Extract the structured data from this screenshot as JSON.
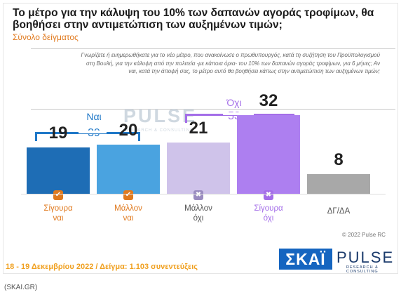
{
  "header": {
    "title": "Το μέτρο για την κάλυψη του 10% των δαπανών αγοράς τροφίμων, θα βοηθήσει στην αντιμετώπιση των αυξημένων τιμών;",
    "subtitle": "Σύνολο δείγματος"
  },
  "question": "Γνωρίζετε ή ενημερωθήκατε για το νέο μέτρο, που ανακοίνωσε ο πρωθυπουργός, κατά τη συζήτηση του Προϋπολογισμού στη Βουλή, για την κάλυψη από την πολιτεία -με κάποια όρια- του 10% των δαπανών αγοράς τροφίμων, για 6 μήνες; Αν ναι, κατά την άποψή σας, το μέτρο αυτό θα βοηθήσει κάπως στην αντιμετώπιση των αυξημένων τιμών;",
  "watermark": {
    "text": "PULSE",
    "sub": "RESEARCH & CONSULTING"
  },
  "groups": [
    {
      "label": "Ναι",
      "value": "39",
      "color": "#1f78c8"
    },
    {
      "label": "Όχι",
      "value": "53",
      "color": "#a46ee8"
    }
  ],
  "chart_data": {
    "type": "bar",
    "categories": [
      "Σίγουρα ναι",
      "Μάλλον ναι",
      "Μάλλον όχι",
      "Σίγουρα όχι",
      "ΔΓ/ΔΑ"
    ],
    "values": [
      19,
      20,
      21,
      32,
      8
    ],
    "colors": [
      "#1e6db5",
      "#4aa3e0",
      "#cfc3ea",
      "#ad7ff0",
      "#a8a8a8"
    ],
    "label_colors": [
      "#e07a1f",
      "#e07a1f",
      "#555555",
      "#a46ee8",
      "#555555"
    ],
    "ylim": [
      0,
      40
    ],
    "grid": false,
    "legend": "none"
  },
  "categories_display": [
    {
      "line1": "Σίγουρα",
      "line2": "ναι"
    },
    {
      "line1": "Μάλλον",
      "line2": "ναι"
    },
    {
      "line1": "Μάλλον",
      "line2": "όχι"
    },
    {
      "line1": "Σίγουρα",
      "line2": "όχι"
    },
    {
      "line1": "ΔΓ/ΔΑ",
      "line2": ""
    }
  ],
  "icons": [
    "thumbs-up-double-icon",
    "thumbs-up-icon",
    "thumbs-down-icon",
    "thumbs-down-double-icon"
  ],
  "copyright": "© 2022 Pulse RC",
  "footer": {
    "date": "18 - 19 Δεκεμβρίου  2022  /  Δείγμα:  1.103 συνεντεύξεις",
    "skai": "ΣΚΑΪ",
    "pulse": "PULSE",
    "pulse_sub": "RESEARCH & CONSULTING",
    "source": "(SKAI.GR)"
  }
}
